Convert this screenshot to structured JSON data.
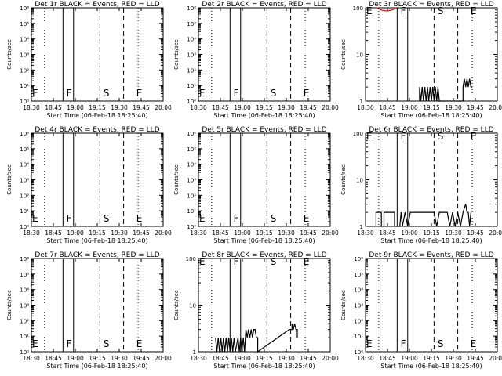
{
  "chart_data": [
    {
      "type": "line",
      "title": "Det 1r BLACK = Events, RED = LLD",
      "xlabel": "Start Time (06-Feb-18 18:25:40)",
      "ylabel": "Counts/sec",
      "yscale": "log",
      "ylim": [
        1,
        1000000
      ],
      "yticks": [
        "10⁰",
        "10¹",
        "10²",
        "10³",
        "10⁴",
        "10⁵",
        "10⁶"
      ],
      "xticks": [
        "18:30",
        "18:45",
        "19:00",
        "19:15",
        "19:30",
        "19:45",
        "20:00"
      ],
      "xlim_minutes": [
        0,
        100
      ],
      "markers": [
        {
          "label": "E",
          "x": 0
        },
        {
          "label": "F",
          "x": 26
        },
        {
          "label": "S",
          "x": 54
        },
        {
          "label": "E",
          "x": 79
        }
      ],
      "series": []
    },
    {
      "type": "line",
      "title": "Det 2r BLACK = Events, RED = LLD",
      "xlabel": "Start Time (06-Feb-18 18:25:40)",
      "ylabel": "Counts/sec",
      "yscale": "log",
      "ylim": [
        1,
        1000000
      ],
      "yticks": [
        "10⁰",
        "10¹",
        "10²",
        "10³",
        "10⁴",
        "10⁵",
        "10⁶"
      ],
      "xticks": [
        "18:30",
        "18:45",
        "19:00",
        "19:15",
        "19:30",
        "19:45",
        "20:00"
      ],
      "xlim_minutes": [
        0,
        100
      ],
      "markers": [
        {
          "label": "E",
          "x": 0
        },
        {
          "label": "F",
          "x": 26
        },
        {
          "label": "S",
          "x": 54
        },
        {
          "label": "E",
          "x": 79
        }
      ],
      "series": []
    },
    {
      "type": "line",
      "title": "Det 3r BLACK = Events, RED = LLD",
      "xlabel": "Start Time (06-Feb-18 18:25:40)",
      "ylabel": "Counts/sec",
      "yscale": "log",
      "ylim": [
        1,
        100
      ],
      "yticks": [
        "1",
        "10",
        "100"
      ],
      "xticks": [
        "18:30",
        "18:45",
        "19:00",
        "19:15",
        "19:30",
        "19:45",
        "20:00"
      ],
      "xlim_minutes": [
        0,
        100
      ],
      "markers": [
        {
          "label": "E",
          "x": 0
        },
        {
          "label": "F",
          "x": 26
        },
        {
          "label": "S",
          "x": 54
        },
        {
          "label": "E",
          "x": 79
        }
      ],
      "series": [
        {
          "color": "#000000",
          "points": [
            [
              41,
              1
            ],
            [
              41,
              2
            ],
            [
              42,
              1
            ],
            [
              43,
              2
            ],
            [
              44,
              1
            ],
            [
              45,
              2
            ],
            [
              46,
              1
            ],
            [
              47,
              2
            ],
            [
              48,
              1
            ],
            [
              49,
              2
            ],
            [
              50,
              1
            ],
            [
              51,
              2
            ],
            [
              52,
              1
            ],
            [
              53,
              2
            ],
            [
              54,
              1
            ],
            [
              55,
              2
            ],
            [
              56,
              1
            ],
            [
              57,
              1
            ],
            [
              73,
              1
            ],
            [
              74,
              1
            ],
            [
              74,
              2
            ],
            [
              75,
              3
            ],
            [
              76,
              2
            ],
            [
              77,
              3
            ],
            [
              78,
              2
            ],
            [
              79,
              3
            ],
            [
              80,
              2
            ],
            [
              81,
              2
            ]
          ]
        },
        {
          "color": "#ff0000",
          "points": [
            [
              9,
              100
            ],
            [
              11,
              92
            ],
            [
              13,
              88
            ],
            [
              15,
              86
            ],
            [
              17,
              86
            ],
            [
              19,
              88
            ],
            [
              21,
              92
            ],
            [
              23,
              100
            ]
          ]
        }
      ]
    },
    {
      "type": "line",
      "title": "Det 4r BLACK = Events, RED = LLD",
      "xlabel": "Start Time (06-Feb-18 18:25:40)",
      "ylabel": "Counts/sec",
      "yscale": "log",
      "ylim": [
        1,
        1000000
      ],
      "yticks": [
        "10⁰",
        "10¹",
        "10²",
        "10³",
        "10⁴",
        "10⁵",
        "10⁶"
      ],
      "xticks": [
        "18:30",
        "18:45",
        "19:00",
        "19:15",
        "19:30",
        "19:45",
        "20:00"
      ],
      "xlim_minutes": [
        0,
        100
      ],
      "markers": [
        {
          "label": "E",
          "x": 0
        },
        {
          "label": "F",
          "x": 26
        },
        {
          "label": "S",
          "x": 54
        },
        {
          "label": "E",
          "x": 79
        }
      ],
      "series": []
    },
    {
      "type": "line",
      "title": "Det 5r BLACK = Events, RED = LLD",
      "xlabel": "Start Time (06-Feb-18 18:25:40)",
      "ylabel": "Counts/sec",
      "yscale": "log",
      "ylim": [
        1,
        1000000
      ],
      "yticks": [
        "10⁰",
        "10¹",
        "10²",
        "10³",
        "10⁴",
        "10⁵",
        "10⁶"
      ],
      "xticks": [
        "18:30",
        "18:45",
        "19:00",
        "19:15",
        "19:30",
        "19:45",
        "20:00"
      ],
      "xlim_minutes": [
        0,
        100
      ],
      "markers": [
        {
          "label": "E",
          "x": 0
        },
        {
          "label": "F",
          "x": 26
        },
        {
          "label": "S",
          "x": 54
        },
        {
          "label": "E",
          "x": 79
        }
      ],
      "series": []
    },
    {
      "type": "line",
      "title": "Det 6r BLACK = Events, RED = LLD",
      "xlabel": "Start Time (06-Feb-18 18:25:40)",
      "ylabel": "Counts/sec",
      "yscale": "log",
      "ylim": [
        1,
        100
      ],
      "yticks": [
        "1",
        "10",
        "100"
      ],
      "xticks": [
        "18:30",
        "18:45",
        "19:00",
        "19:15",
        "19:30",
        "19:45",
        "20:00"
      ],
      "xlim_minutes": [
        0,
        100
      ],
      "markers": [
        {
          "label": "E",
          "x": 0
        },
        {
          "label": "F",
          "x": 26
        },
        {
          "label": "S",
          "x": 54
        },
        {
          "label": "E",
          "x": 79
        }
      ],
      "series": [
        {
          "color": "#000000",
          "points": [
            [
              8,
              1
            ],
            [
              8,
              2
            ],
            [
              12,
              2
            ],
            [
              12,
              1
            ],
            [
              14,
              1
            ],
            [
              14,
              2
            ],
            [
              22,
              2
            ],
            [
              22,
              1
            ],
            [
              26,
              1
            ],
            [
              27,
              2
            ],
            [
              28,
              1
            ],
            [
              30,
              2
            ],
            [
              32,
              1
            ],
            [
              34,
              2
            ],
            [
              36,
              2
            ],
            [
              38,
              2
            ],
            [
              40,
              2
            ],
            [
              42,
              2
            ],
            [
              44,
              2
            ],
            [
              46,
              2
            ],
            [
              48,
              2
            ],
            [
              50,
              2
            ],
            [
              52,
              2
            ],
            [
              54,
              1
            ],
            [
              56,
              2
            ],
            [
              58,
              2
            ],
            [
              60,
              2
            ],
            [
              62,
              2
            ],
            [
              64,
              1
            ],
            [
              66,
              2
            ],
            [
              68,
              1
            ],
            [
              70,
              2
            ],
            [
              72,
              1
            ],
            [
              74,
              2
            ],
            [
              76,
              3
            ],
            [
              77,
              2
            ],
            [
              78,
              2
            ],
            [
              79,
              1
            ],
            [
              80,
              2
            ]
          ]
        }
      ]
    },
    {
      "type": "line",
      "title": "Det 7r BLACK = Events, RED = LLD",
      "xlabel": "Start Time (06-Feb-18 18:25:40)",
      "ylabel": "Counts/sec",
      "yscale": "log",
      "ylim": [
        1,
        1000000
      ],
      "yticks": [
        "10⁰",
        "10¹",
        "10²",
        "10³",
        "10⁴",
        "10⁵",
        "10⁶"
      ],
      "xticks": [
        "18:30",
        "18:45",
        "19:00",
        "19:15",
        "19:30",
        "19:45",
        "20:00"
      ],
      "xlim_minutes": [
        0,
        100
      ],
      "markers": [
        {
          "label": "E",
          "x": 0
        },
        {
          "label": "F",
          "x": 26
        },
        {
          "label": "S",
          "x": 54
        },
        {
          "label": "E",
          "x": 79
        }
      ],
      "series": []
    },
    {
      "type": "line",
      "title": "Det 8r BLACK = Events, RED = LLD",
      "xlabel": "Start Time (06-Feb-18 18:25:40)",
      "ylabel": "Counts/sec",
      "yscale": "log",
      "ylim": [
        1,
        100
      ],
      "yticks": [
        "1",
        "10",
        "100"
      ],
      "xticks": [
        "18:30",
        "18:45",
        "19:00",
        "19:15",
        "19:30",
        "19:45",
        "20:00"
      ],
      "xlim_minutes": [
        0,
        100
      ],
      "markers": [
        {
          "label": "E",
          "x": 0
        },
        {
          "label": "F",
          "x": 26
        },
        {
          "label": "S",
          "x": 54
        },
        {
          "label": "E",
          "x": 79
        }
      ],
      "series": [
        {
          "color": "#000000",
          "points": [
            [
              13,
              2
            ],
            [
              14,
              1
            ],
            [
              15,
              2
            ],
            [
              16,
              1
            ],
            [
              17,
              2
            ],
            [
              18,
              1
            ],
            [
              19,
              2
            ],
            [
              20,
              1
            ],
            [
              21,
              2
            ],
            [
              22,
              1
            ],
            [
              23,
              2
            ],
            [
              24,
              1
            ],
            [
              25,
              2
            ],
            [
              26,
              1
            ],
            [
              27,
              2
            ],
            [
              28,
              1
            ],
            [
              30,
              2
            ],
            [
              31,
              1
            ],
            [
              32,
              2
            ],
            [
              33,
              1
            ],
            [
              34,
              2
            ],
            [
              35,
              1
            ],
            [
              36,
              3
            ],
            [
              37,
              2
            ],
            [
              38,
              3
            ],
            [
              39,
              2
            ],
            [
              40,
              3
            ],
            [
              41,
              2
            ],
            [
              42,
              3
            ],
            [
              43,
              3
            ],
            [
              44,
              2
            ],
            [
              45,
              2
            ],
            [
              45,
              1
            ],
            [
              69,
              3
            ],
            [
              70,
              3
            ],
            [
              71,
              3
            ],
            [
              71,
              4
            ],
            [
              72,
              3
            ],
            [
              73,
              4
            ],
            [
              74,
              3
            ],
            [
              75,
              3
            ],
            [
              75,
              2
            ]
          ]
        }
      ]
    },
    {
      "type": "line",
      "title": "Det 9r BLACK = Events, RED = LLD",
      "xlabel": "Start Time (06-Feb-18 18:25:40)",
      "ylabel": "Counts/sec",
      "yscale": "log",
      "ylim": [
        1,
        1000000
      ],
      "yticks": [
        "10⁰",
        "10¹",
        "10²",
        "10³",
        "10⁴",
        "10⁵",
        "10⁶"
      ],
      "xticks": [
        "18:30",
        "18:45",
        "19:00",
        "19:15",
        "19:30",
        "19:45",
        "20:00"
      ],
      "xlim_minutes": [
        0,
        100
      ],
      "markers": [
        {
          "label": "E",
          "x": 0
        },
        {
          "label": "F",
          "x": 26
        },
        {
          "label": "S",
          "x": 54
        },
        {
          "label": "E",
          "x": 79
        }
      ],
      "series": []
    }
  ]
}
